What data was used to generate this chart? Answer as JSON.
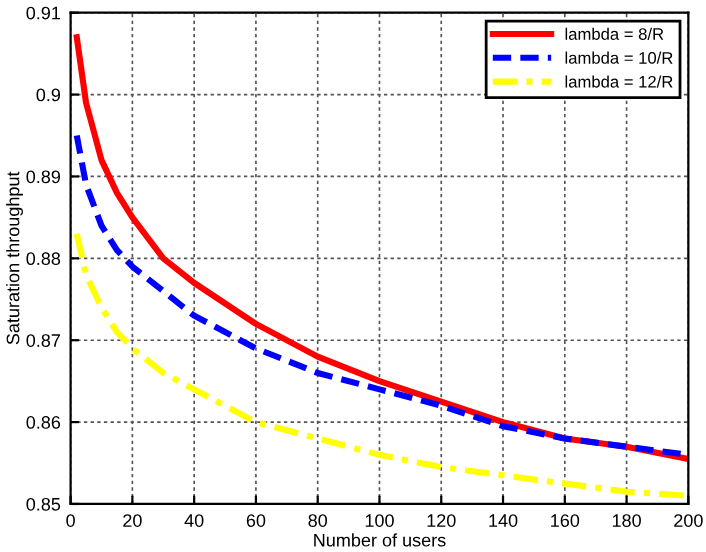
{
  "chart_data": {
    "type": "line",
    "xlabel": "Number of users",
    "ylabel": "Saturation throughput",
    "xlim": [
      0,
      200
    ],
    "xticks": [
      0,
      20,
      40,
      60,
      80,
      100,
      120,
      140,
      160,
      180,
      200
    ],
    "ylim": [
      0.85,
      0.91
    ],
    "yticks": [
      0.85,
      0.86,
      0.87,
      0.88,
      0.89,
      0.9,
      0.91
    ],
    "grid": true,
    "legend": "top right",
    "series": [
      {
        "name": "lambda = 8/R",
        "color": "#ff0000",
        "line_style": "solid",
        "x": [
          2,
          5,
          10,
          15,
          20,
          30,
          40,
          60,
          80,
          100,
          120,
          140,
          160,
          180,
          200
        ],
        "values": [
          0.907,
          0.899,
          0.892,
          0.888,
          0.885,
          0.88,
          0.877,
          0.872,
          0.868,
          0.865,
          0.8625,
          0.86,
          0.858,
          0.857,
          0.8555
        ]
      },
      {
        "name": "lambda = 10/R",
        "color": "#0000ff",
        "line_style": "dashed",
        "x": [
          2,
          5,
          10,
          15,
          20,
          30,
          40,
          60,
          80,
          100,
          120,
          140,
          160,
          180,
          200
        ],
        "values": [
          0.895,
          0.889,
          0.884,
          0.881,
          0.879,
          0.876,
          0.873,
          0.869,
          0.866,
          0.864,
          0.862,
          0.8595,
          0.858,
          0.857,
          0.856
        ]
      },
      {
        "name": "lambda = 12/R",
        "color": "#ffff00",
        "line_style": "dashdot",
        "x": [
          2,
          5,
          10,
          15,
          20,
          30,
          40,
          60,
          80,
          100,
          120,
          140,
          160,
          180,
          200
        ],
        "values": [
          0.883,
          0.878,
          0.874,
          0.871,
          0.869,
          0.866,
          0.864,
          0.86,
          0.858,
          0.856,
          0.8545,
          0.8535,
          0.8525,
          0.8515,
          0.851
        ]
      }
    ]
  }
}
